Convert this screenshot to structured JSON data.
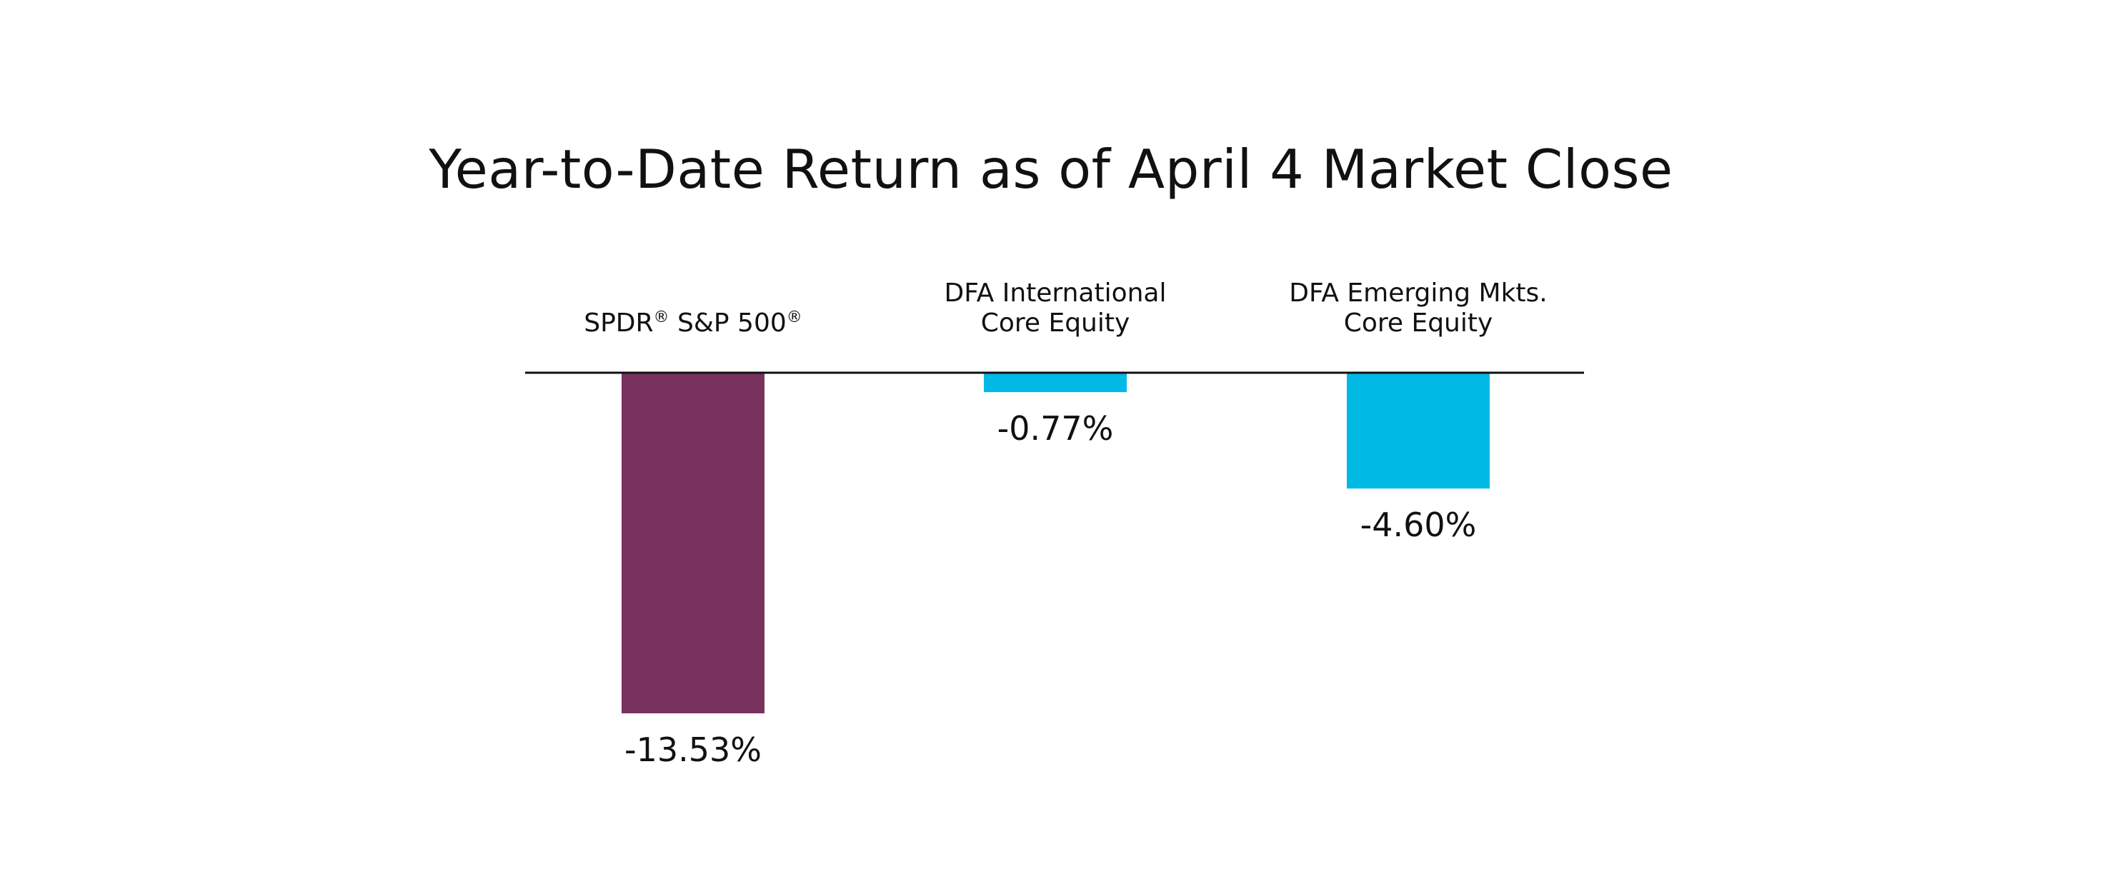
{
  "chart_data": {
    "type": "bar",
    "title": "Year-to-Date Return as of April 4 Market Close",
    "xlabel": "",
    "ylabel": "",
    "unit": "%",
    "categories": [
      {
        "lines": [
          [
            {
              "t": "SPDR"
            },
            {
              "t": "®",
              "sup": true
            },
            {
              "t": " S&P 500"
            },
            {
              "t": "®",
              "sup": true
            }
          ]
        ]
      },
      {
        "lines": [
          [
            {
              "t": "DFA International"
            }
          ],
          [
            {
              "t": "Core Equity"
            }
          ]
        ]
      },
      {
        "lines": [
          [
            {
              "t": "DFA Emerging Mkts."
            }
          ],
          [
            {
              "t": "Core Equity"
            }
          ]
        ]
      }
    ],
    "values": [
      -13.53,
      -0.77,
      -4.6
    ],
    "value_labels": [
      "-13.53%",
      "-0.77%",
      "-4.60%"
    ],
    "colors": [
      "#78325e",
      "#00b9e4",
      "#00b9e4"
    ],
    "ylim": [
      -13.53,
      0
    ],
    "grid": false,
    "legend": "none",
    "baseline": "zero line"
  }
}
